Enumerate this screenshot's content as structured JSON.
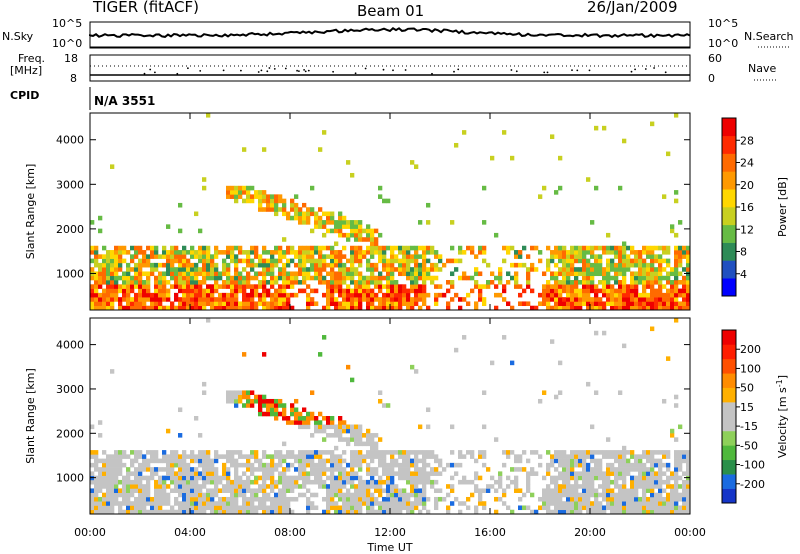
{
  "header": {
    "radar": "TIGER (fitACF)",
    "beam": "Beam 01",
    "date": "26/Jan/2009"
  },
  "top_panels": {
    "nsky_label": "N.Sky",
    "nsky_ticks": [
      "10^5",
      "10^0"
    ],
    "nsearch_label": "N.Search",
    "nsearch_ticks": [
      "10^5",
      "10^0"
    ],
    "freq_label_line1": "Freq.",
    "freq_label_line2": "[MHz]",
    "freq_ticks": [
      "18",
      "8"
    ],
    "nave_label": "Nave",
    "nave_ticks": [
      "60",
      "0"
    ],
    "cpid_label": "CPID",
    "cpid_value": "N/A 3551"
  },
  "colors": {
    "power_scale": [
      "#0000ff",
      "#2050c0",
      "#2e8b57",
      "#66bb44",
      "#c8d020",
      "#ffd700",
      "#ff9900",
      "#ff6a00",
      "#ff2a00",
      "#ee0000"
    ],
    "velocity_scale": [
      "#1535c8",
      "#1a6be0",
      "#2a8f4a",
      "#4fb83c",
      "#8ed05a",
      "#c4c4c4",
      "#c4c4c4",
      "#ffb000",
      "#ff8c00",
      "#ff5000",
      "#ff1e00",
      "#ee0000"
    ]
  },
  "chart_data": [
    {
      "type": "heatmap",
      "parameter": "Power",
      "ylabel": "Slant Range [km]",
      "yticks": [
        "4000",
        "3000",
        "2000",
        "1000"
      ],
      "ylim": [
        180,
        4600
      ],
      "xticks": [
        "00:00",
        "04:00",
        "08:00",
        "12:00",
        "16:00",
        "20:00",
        "00:00"
      ],
      "xlim_hours": [
        0,
        24
      ],
      "colorbar_label": "Power [dB]",
      "colorbar_ticks": [
        "28",
        "24",
        "20",
        "16",
        "12",
        "8",
        "4"
      ],
      "colorbar_range": [
        0,
        30
      ]
    },
    {
      "type": "heatmap",
      "parameter": "Velocity",
      "ylabel": "Slant Range [km]",
      "yticks": [
        "4000",
        "3000",
        "2000",
        "1000"
      ],
      "ylim": [
        180,
        4600
      ],
      "xticks": [
        "00:00",
        "04:00",
        "08:00",
        "12:00",
        "16:00",
        "20:00",
        "00:00"
      ],
      "xlim_hours": [
        0,
        24
      ],
      "xlabel": "Time UT",
      "colorbar_label": "Velocity [m s",
      "colorbar_label_sup": "-1",
      "colorbar_label_end": "]",
      "colorbar_ticks": [
        "200",
        "100",
        "50",
        "15",
        "-15",
        "-50",
        "-100",
        "-200"
      ],
      "colorbar_range": [
        -250,
        250
      ]
    }
  ]
}
